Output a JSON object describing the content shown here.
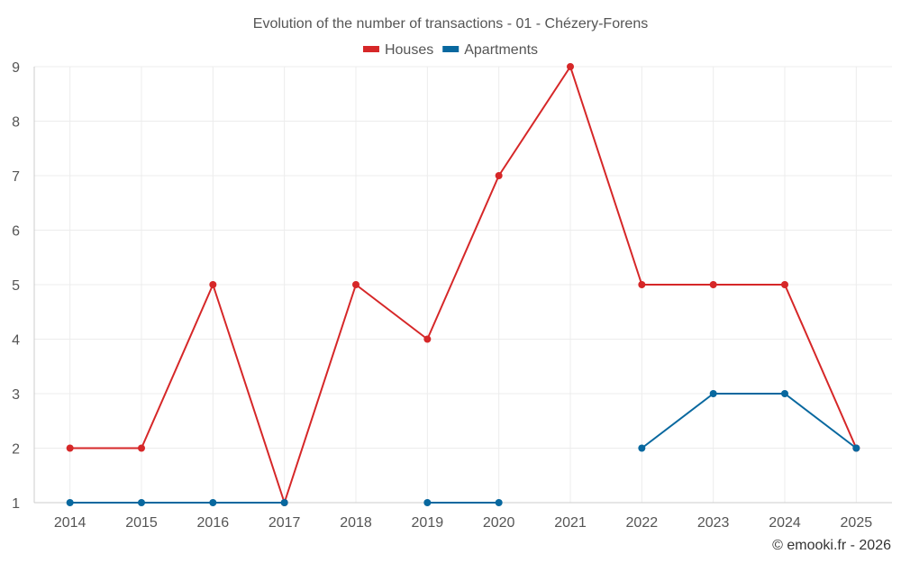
{
  "chart_data": {
    "type": "line",
    "title": "Evolution of the number of transactions - 01 - Chézery-Forens",
    "categories": [
      "2014",
      "2015",
      "2016",
      "2017",
      "2018",
      "2019",
      "2020",
      "2021",
      "2022",
      "2023",
      "2024",
      "2025"
    ],
    "ylim": [
      1,
      9
    ],
    "yticks": [
      1,
      2,
      3,
      4,
      5,
      6,
      7,
      8,
      9
    ],
    "grid": true,
    "legend_position": "top-center",
    "series": [
      {
        "name": "Houses",
        "color": "#d62728",
        "values": [
          2,
          2,
          5,
          1,
          5,
          4,
          7,
          9,
          5,
          5,
          5,
          2
        ]
      },
      {
        "name": "Apartments",
        "color": "#08689f",
        "values": [
          1,
          1,
          1,
          1,
          null,
          1,
          1,
          null,
          2,
          3,
          3,
          2
        ]
      }
    ]
  },
  "footer": {
    "credit": "© emooki.fr - 2026"
  }
}
